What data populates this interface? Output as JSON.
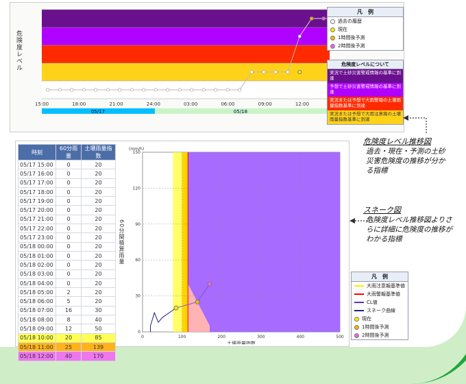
{
  "top_chart": {
    "y_label": "危険度レベル",
    "x_ticks": [
      "15:00",
      "18:00",
      "21:00",
      "24:00",
      "03:00",
      "06:00",
      "09:00",
      "12:00"
    ],
    "date_bar": [
      "05/17",
      "05/18"
    ],
    "band_colors": [
      "#6a0f8e",
      "#b000ff",
      "#ff2a00",
      "#ffd21a",
      "#ffffff"
    ],
    "series": [
      {
        "name": "過去の履歴",
        "color": "#ffffff",
        "values": [
          0,
          0,
          0,
          0,
          0,
          0,
          0,
          0,
          0,
          0,
          0,
          0,
          0,
          0,
          0,
          0,
          0,
          1,
          1,
          1,
          1,
          3
        ]
      },
      {
        "name": "現在",
        "color": "#ffee00",
        "values": [
          1
        ]
      },
      {
        "name": "1時間後予測",
        "color": "#f5b800",
        "values": [
          4
        ]
      },
      {
        "name": "2時間後予測",
        "color": "#ee66ee",
        "values": [
          4
        ]
      }
    ]
  },
  "top_legend": {
    "title": "凡　例",
    "items": [
      {
        "label": "過去の履歴",
        "color": "#ffffff"
      },
      {
        "label": "現在",
        "color": "#ffee00"
      },
      {
        "label": "1時間後予測",
        "color": "#f5b800"
      },
      {
        "label": "2時間後予測",
        "color": "#ee66ee"
      }
    ]
  },
  "level_box": {
    "title": "危険度レベルについて",
    "rows": [
      {
        "text": "実況で土砂災害警戒情報の基準に到達",
        "color": "#6a0f8e"
      },
      {
        "text": "予想で土砂災害警戒情報の基準に到達",
        "color": "#b000ff"
      },
      {
        "text": "実況または予想で大雨警報の土壌雨量指数基準に到達",
        "color": "#ff2a00"
      },
      {
        "text": "実況または予想で大雨注意報の土壌雨量指数基準に到達",
        "color": "#ffd21a"
      }
    ]
  },
  "annot1": {
    "heading": "危険度レベル推移図",
    "body": "過去・現在・予測の土砂災害危険度の推移が分かる指標"
  },
  "annot2": {
    "heading": "スネーク図",
    "body": "危険度レベル推移図よりさらに詳細に危険度の推移がわかる指標"
  },
  "table": {
    "headers": [
      "時刻",
      "60分雨量",
      "土壌雨量指数"
    ],
    "rows": [
      [
        "05/17 15:00",
        "0",
        "20"
      ],
      [
        "05/17 16:00",
        "0",
        "20"
      ],
      [
        "05/17 17:00",
        "0",
        "20"
      ],
      [
        "05/17 18:00",
        "0",
        "20"
      ],
      [
        "05/17 19:00",
        "0",
        "20"
      ],
      [
        "05/17 20:00",
        "0",
        "20"
      ],
      [
        "05/17 21:00",
        "0",
        "20"
      ],
      [
        "05/17 22:00",
        "0",
        "20"
      ],
      [
        "05/17 23:00",
        "0",
        "20"
      ],
      [
        "05/18 00:00",
        "0",
        "20"
      ],
      [
        "05/18 01:00",
        "0",
        "20"
      ],
      [
        "05/18 02:00",
        "0",
        "20"
      ],
      [
        "05/18 03:00",
        "0",
        "20"
      ],
      [
        "05/18 04:00",
        "0",
        "20"
      ],
      [
        "05/18 05:00",
        "2",
        "20"
      ],
      [
        "05/18 06:00",
        "5",
        "20"
      ],
      [
        "05/18 07:00",
        "16",
        "30"
      ],
      [
        "05/18 08:00",
        "8",
        "40"
      ],
      [
        "05/18 09:00",
        "12",
        "50"
      ],
      [
        "05/18 10:00",
        "20",
        "85"
      ],
      [
        "05/18 11:00",
        "25",
        "139"
      ],
      [
        "05/18 12:00",
        "40",
        "170"
      ]
    ]
  },
  "snake_chart": {
    "y_unit": "(mm/h)",
    "y_label": "60分間積算雨量",
    "x_label": "土壌雨量指数",
    "x_ticks": [
      0,
      100,
      200,
      300,
      400,
      500
    ],
    "y_ticks": [
      0,
      30,
      60,
      90,
      120,
      150
    ],
    "xlim": [
      0,
      500
    ],
    "ylim": [
      0,
      150
    ],
    "chart_data": {
      "type": "line",
      "snake": {
        "x": [
          20,
          20,
          20,
          20,
          20,
          20,
          20,
          20,
          20,
          20,
          20,
          20,
          20,
          20,
          20,
          30,
          40,
          50,
          85
        ],
        "y": [
          0,
          0,
          0,
          0,
          0,
          0,
          0,
          0,
          0,
          0,
          0,
          0,
          0,
          2,
          5,
          16,
          8,
          12,
          20
        ]
      },
      "current": {
        "x": 85,
        "y": 20
      },
      "forecast_1h": {
        "x": 139,
        "y": 25
      },
      "forecast_2h": {
        "x": 170,
        "y": 40
      }
    }
  },
  "snake_legend": {
    "title": "凡　例",
    "items": [
      {
        "label": "大雨注意報基準値",
        "color": "#ffee00",
        "kind": "line"
      },
      {
        "label": "大雨警報基準値",
        "color": "#ff0000",
        "kind": "line"
      },
      {
        "label": "CL値",
        "color": "#5533cc",
        "kind": "line"
      },
      {
        "label": "スネーク曲線",
        "color": "#1a237e",
        "kind": "line"
      },
      {
        "label": "現在",
        "color": "#ffee00",
        "kind": "dot"
      },
      {
        "label": "1時間後予測",
        "color": "#f5b800",
        "kind": "dot"
      },
      {
        "label": "2時間後予測",
        "color": "#ee66ee",
        "kind": "dot"
      }
    ]
  }
}
